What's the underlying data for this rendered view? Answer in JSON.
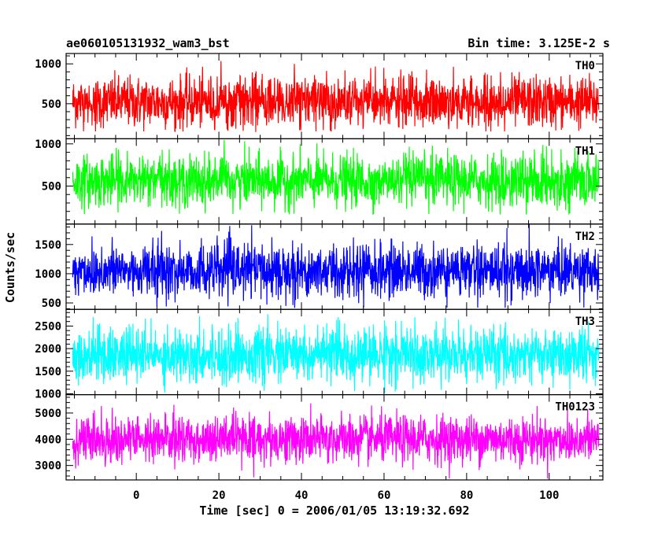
{
  "header": {
    "title": "ae060105131932_wam3_bst",
    "bin_time": "Bin time: 3.125E-2 s"
  },
  "chart_data": {
    "type": "line",
    "shared_x": {
      "label": "Time [sec] 0 = 2006/01/05 13:19:32.692",
      "range": [
        -17,
        113
      ],
      "ticks": [
        0,
        20,
        40,
        60,
        80,
        100
      ],
      "minor_step": 5,
      "data_range": [
        -15.4,
        112.0
      ]
    },
    "ylabel": "Counts/sec",
    "grid": false,
    "panels": [
      {
        "name": "TH0",
        "color": "#ff0000",
        "ylim": [
          60,
          1130
        ],
        "ticks": [
          500,
          1000
        ],
        "minor_step": 100,
        "mean": 520,
        "spread": 160,
        "min": 140,
        "max": 1130
      },
      {
        "name": "TH1",
        "color": "#00ff00",
        "ylim": [
          50,
          1060
        ],
        "ticks": [
          500,
          1000
        ],
        "minor_step": 100,
        "mean": 560,
        "spread": 150,
        "min": 160,
        "max": 1060
      },
      {
        "name": "TH2",
        "color": "#0000ff",
        "ylim": [
          390,
          1850
        ],
        "ticks": [
          500,
          1000,
          1500
        ],
        "minor_step": 100,
        "mean": 1050,
        "spread": 230,
        "min": 410,
        "max": 1850
      },
      {
        "name": "TH3",
        "color": "#00ffff",
        "ylim": [
          980,
          2870
        ],
        "ticks": [
          1000,
          1500,
          2000,
          2500
        ],
        "minor_step": 100,
        "mean": 1860,
        "spread": 300,
        "min": 1010,
        "max": 2870
      },
      {
        "name": "TH0123",
        "color": "#ff00ff",
        "ylim": [
          2450,
          5700
        ],
        "ticks": [
          3000,
          4000,
          5000
        ],
        "minor_step": 200,
        "mean": 4000,
        "spread": 450,
        "min": 2500,
        "max": 5700
      }
    ]
  }
}
